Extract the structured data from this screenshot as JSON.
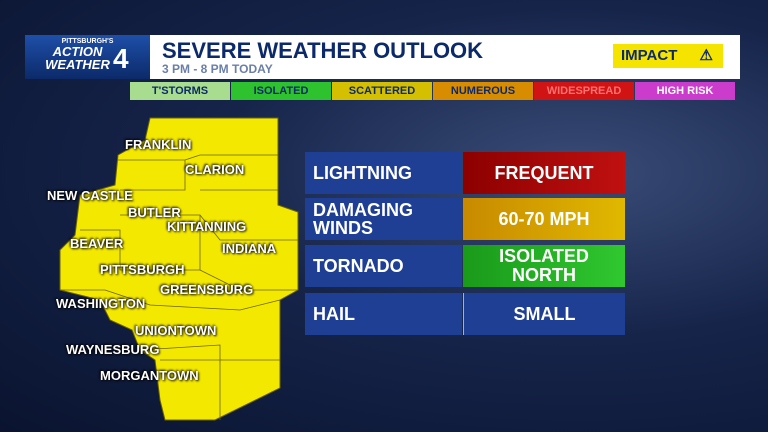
{
  "header": {
    "logo": [
      "PITTSBURGH'S",
      "ACTION",
      "WEATHER",
      "4"
    ],
    "title": "SEVERE WEATHER OUTLOOK",
    "subtitle": "3 PM - 8 PM TODAY",
    "badge": "IMPACT"
  },
  "legend": [
    "T'STORMS",
    "ISOLATED",
    "SCATTERED",
    "NUMEROUS",
    "WIDESPREAD",
    "HIGH RISK"
  ],
  "map": {
    "labels": [
      "FRANKLIN",
      "CLARION",
      "NEW CASTLE",
      "BUTLER",
      "KITTANNING",
      "INDIANA",
      "BEAVER",
      "PITTSBURGH",
      "GREENSBURG",
      "WASHINGTON",
      "UNIONTOWN",
      "WAYNESBURG",
      "MORGANTOWN"
    ]
  },
  "table": {
    "rows": [
      [
        "LIGHTNING",
        "FREQUENT"
      ],
      [
        "DAMAGING WINDS",
        "60-70 MPH"
      ],
      [
        "TORNADO",
        "ISOLATED NORTH"
      ],
      [
        "HAIL",
        "SMALL"
      ]
    ]
  }
}
